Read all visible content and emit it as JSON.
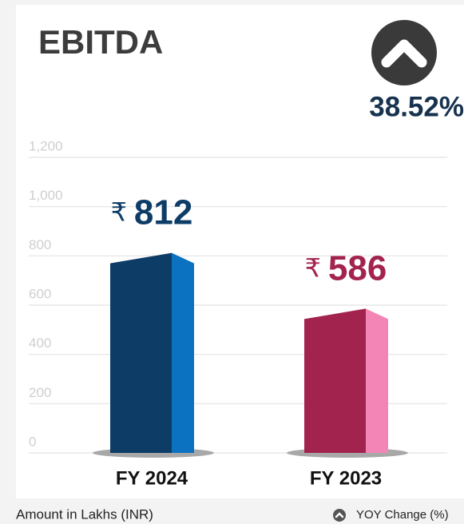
{
  "chart_data": {
    "type": "bar3d",
    "title": "EBITDA",
    "change_label": "38.52%",
    "categories": [
      "FY 2024",
      "FY 2023"
    ],
    "values": [
      812,
      586
    ],
    "value_labels": [
      "₹ 812",
      "₹ 586"
    ],
    "colors": [
      "#0d3c66",
      "#a3234f"
    ],
    "side_colors": [
      "#0a72c0",
      "#f385b6"
    ],
    "ylim": [
      0,
      1200
    ],
    "yticks": [
      0,
      200,
      400,
      600,
      800,
      {
        "value": 1000,
        "label": "1,000"
      },
      {
        "value": 1200,
        "label": "1,200"
      }
    ],
    "grid": true,
    "footnote": "Amount in Lakhs (INR)",
    "legend": "YOY Change (%)"
  }
}
